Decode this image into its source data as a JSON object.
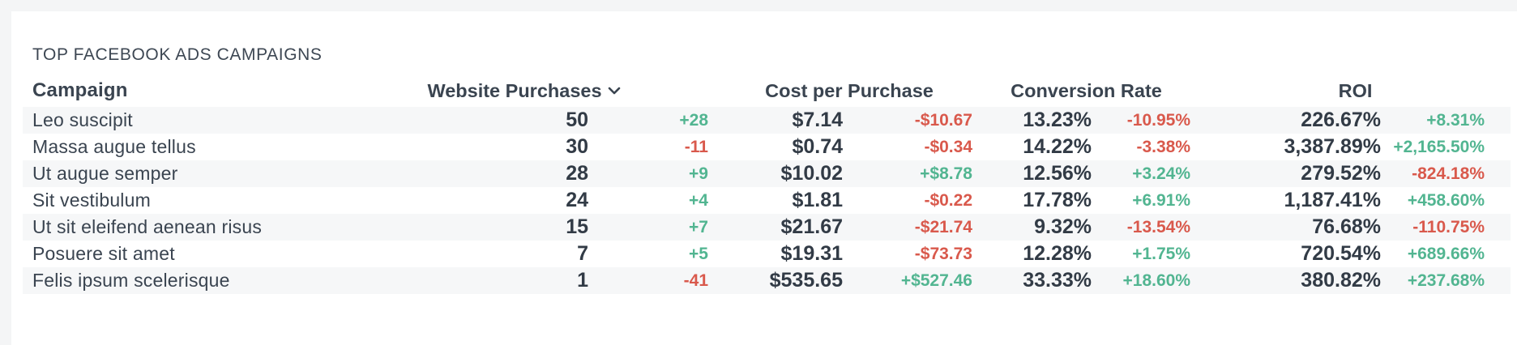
{
  "widget": {
    "title": "TOP FACEBOOK ADS CAMPAIGNS"
  },
  "columns": {
    "campaign": "Campaign",
    "purchases": "Website Purchases",
    "cost": "Cost per Purchase",
    "conversion": "Conversion Rate",
    "roi": "ROI"
  },
  "sort": {
    "column": "Website Purchases",
    "direction": "descending",
    "icon": "chevron-down-icon"
  },
  "colors": {
    "positive": "#52b591",
    "negative": "#d9594c",
    "row_stripe": "#f6f7f8"
  },
  "rows": [
    {
      "name": "Leo suscipit",
      "purchases": "50",
      "purchases_change": "+28",
      "cost": "$7.14",
      "cost_change": "-$10.67",
      "conversion": "13.23%",
      "conversion_change": "-10.95%",
      "roi": "226.67%",
      "roi_change": "+8.31%"
    },
    {
      "name": "Massa augue tellus",
      "purchases": "30",
      "purchases_change": "-11",
      "cost": "$0.74",
      "cost_change": "-$0.34",
      "conversion": "14.22%",
      "conversion_change": "-3.38%",
      "roi": "3,387.89%",
      "roi_change": "+2,165.50%"
    },
    {
      "name": "Ut augue semper",
      "purchases": "28",
      "purchases_change": "+9",
      "cost": "$10.02",
      "cost_change": "+$8.78",
      "conversion": "12.56%",
      "conversion_change": "+3.24%",
      "roi": "279.52%",
      "roi_change": "-824.18%"
    },
    {
      "name": "Sit vestibulum",
      "purchases": "24",
      "purchases_change": "+4",
      "cost": "$1.81",
      "cost_change": "-$0.22",
      "conversion": "17.78%",
      "conversion_change": "+6.91%",
      "roi": "1,187.41%",
      "roi_change": "+458.60%"
    },
    {
      "name": "Ut sit eleifend aenean risus",
      "purchases": "15",
      "purchases_change": "+7",
      "cost": "$21.67",
      "cost_change": "-$21.74",
      "conversion": "9.32%",
      "conversion_change": "-13.54%",
      "roi": "76.68%",
      "roi_change": "-110.75%"
    },
    {
      "name": "Posuere sit amet",
      "purchases": "7",
      "purchases_change": "+5",
      "cost": "$19.31",
      "cost_change": "-$73.73",
      "conversion": "12.28%",
      "conversion_change": "+1.75%",
      "roi": "720.54%",
      "roi_change": "+689.66%"
    },
    {
      "name": "Felis ipsum scelerisque",
      "purchases": "1",
      "purchases_change": "-41",
      "cost": "$535.65",
      "cost_change": "+$527.46",
      "conversion": "33.33%",
      "conversion_change": "+18.60%",
      "roi": "380.82%",
      "roi_change": "+237.68%"
    }
  ]
}
